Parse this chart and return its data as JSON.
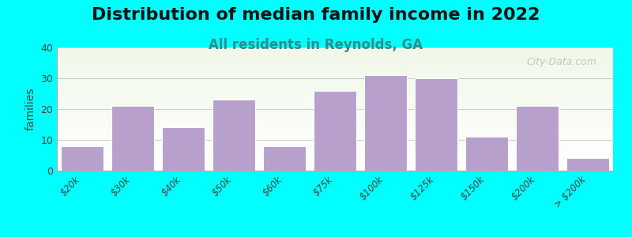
{
  "title": "Distribution of median family income in 2022",
  "subtitle": "All residents in Reynolds, GA",
  "categories": [
    "$20k",
    "$30k",
    "$40k",
    "$50k",
    "$60k",
    "$75k",
    "$100k",
    "$125k",
    "$150k",
    "$200k",
    "> $200k"
  ],
  "values": [
    8,
    21,
    14,
    23,
    8,
    26,
    31,
    30,
    11,
    21,
    4
  ],
  "bar_color": "#b8a0cc",
  "bar_edge_color": "#ffffff",
  "ylabel": "families",
  "ylim": [
    0,
    40
  ],
  "yticks": [
    0,
    10,
    20,
    30,
    40
  ],
  "background_top": "#f0f5e8",
  "background_bottom": "#ffffff",
  "outer_bg": "#00ffff",
  "title_fontsize": 16,
  "subtitle_fontsize": 12,
  "subtitle_color": "#2e8b8b",
  "watermark": "City-Data.com"
}
